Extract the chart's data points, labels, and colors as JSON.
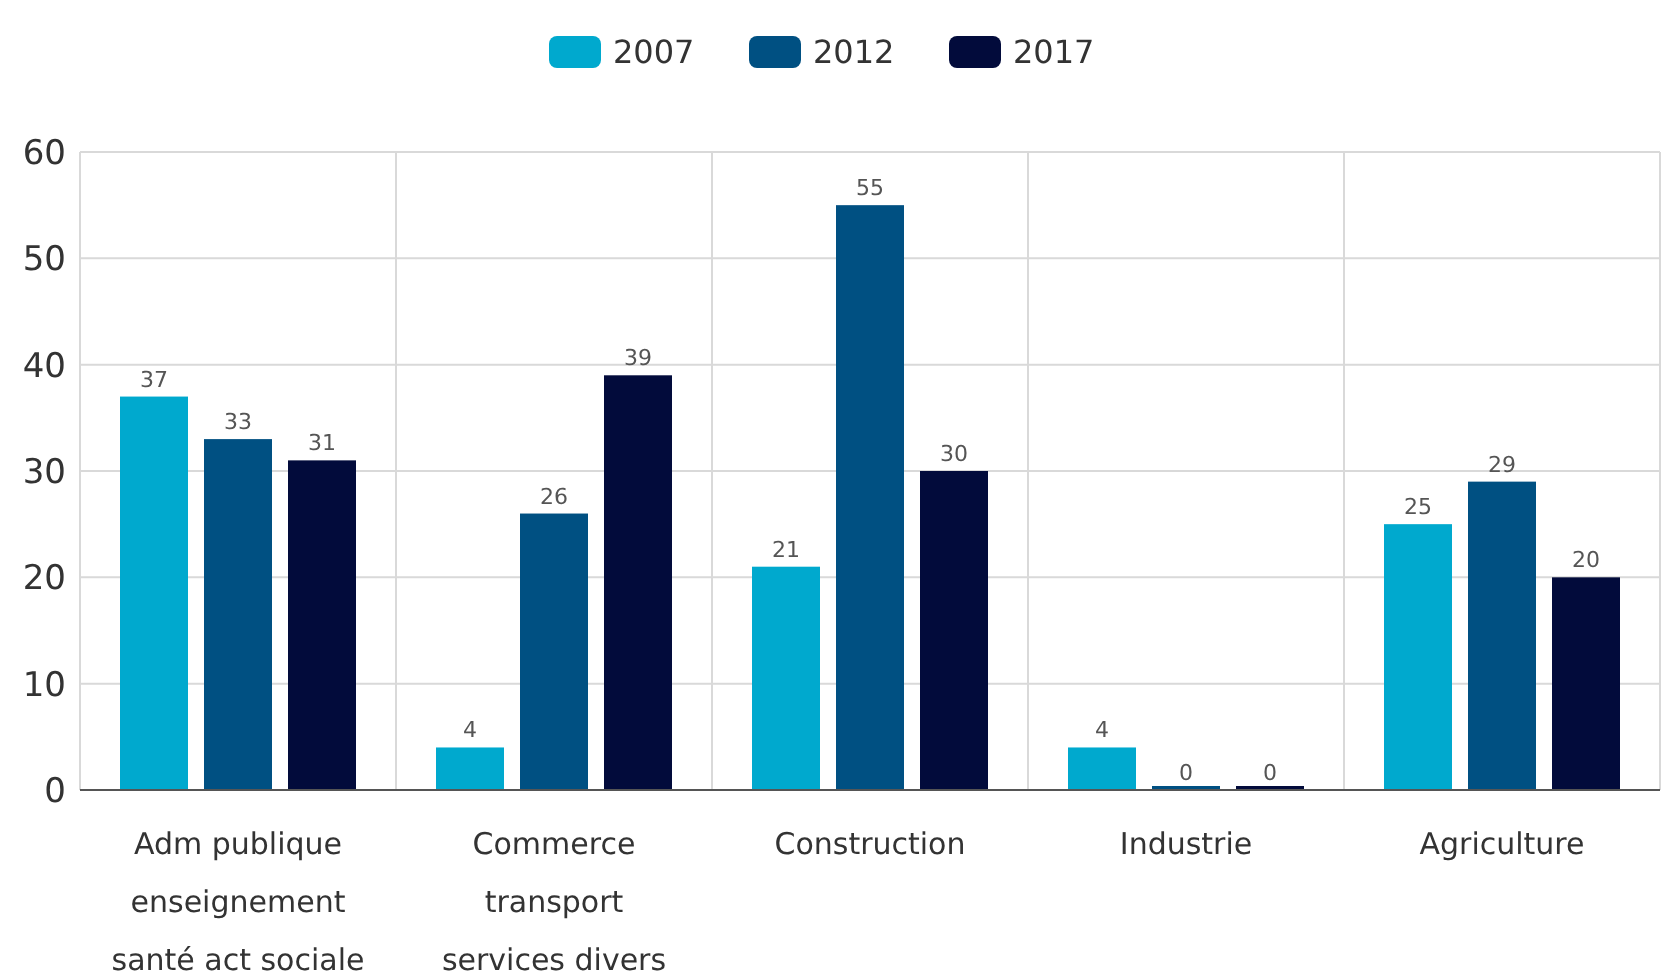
{
  "chart_data": {
    "type": "bar",
    "categories": [
      "Adm publique\nenseignement\nsanté act sociale",
      "Commerce\ntransport\nservices divers",
      "Construction",
      "Industrie",
      "Agriculture"
    ],
    "series": [
      {
        "name": "2007",
        "color": "#00a9ce",
        "values": [
          37,
          4,
          21,
          4,
          25
        ]
      },
      {
        "name": "2012",
        "color": "#005082",
        "values": [
          33,
          26,
          55,
          0,
          29
        ]
      },
      {
        "name": "2017",
        "color": "#020b3b",
        "values": [
          31,
          39,
          30,
          0,
          20
        ]
      }
    ],
    "ylim": [
      0,
      60
    ],
    "yticks": [
      0,
      10,
      20,
      30,
      40,
      50,
      60
    ],
    "grid": true,
    "legend": "top",
    "data_labels": true
  }
}
